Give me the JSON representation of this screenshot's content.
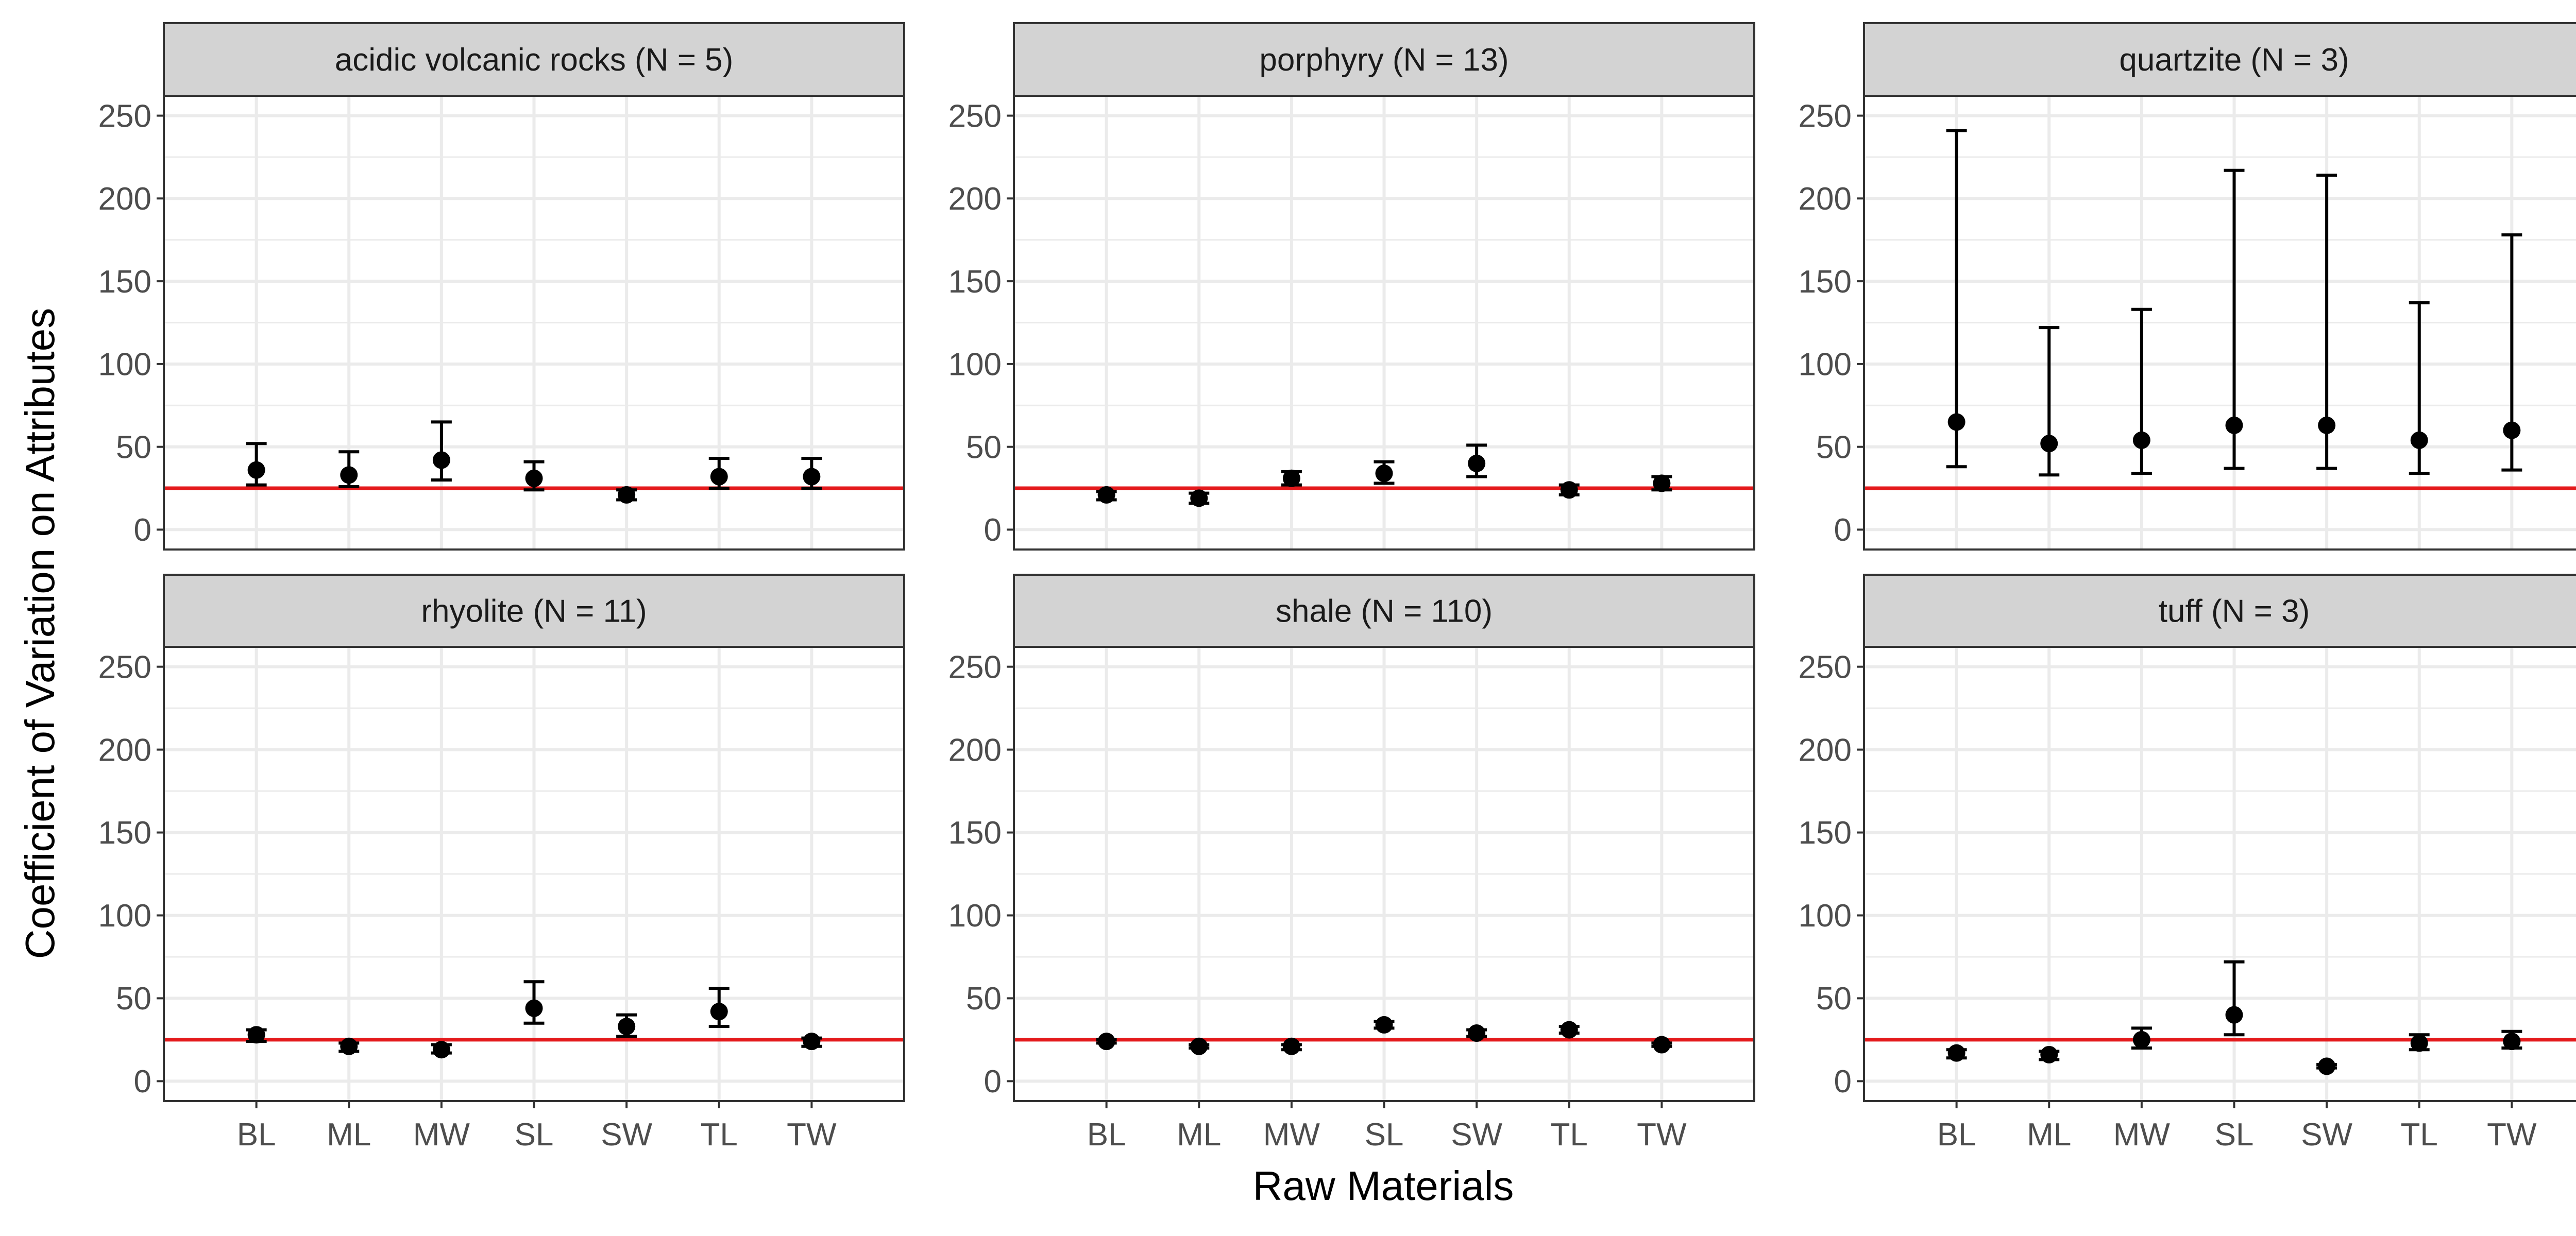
{
  "chart_data": {
    "type": "scatter",
    "subtype": "faceted point with error bars",
    "xlabel": "Raw Materials",
    "ylabel": "Coefficient of Variation on Attributes",
    "categories": [
      "BL",
      "ML",
      "MW",
      "SL",
      "SW",
      "TL",
      "TW"
    ],
    "ylim": [
      -12,
      262
    ],
    "yticks": [
      0,
      50,
      100,
      150,
      200,
      250
    ],
    "grid": true,
    "reference_line": {
      "y": 25,
      "color": "#e41a1c"
    },
    "colors": {
      "points": "#000000",
      "reference": "#e41a1c",
      "strip": "#d3d3d3",
      "grid": "#ebebeb"
    },
    "facets": [
      {
        "title": "acidic volcanic rocks (N = 5)",
        "points": [
          {
            "x": "BL",
            "y": 36,
            "ymin": 27,
            "ymax": 52
          },
          {
            "x": "ML",
            "y": 33,
            "ymin": 26,
            "ymax": 47
          },
          {
            "x": "MW",
            "y": 42,
            "ymin": 30,
            "ymax": 65
          },
          {
            "x": "SL",
            "y": 31,
            "ymin": 24,
            "ymax": 41
          },
          {
            "x": "SW",
            "y": 21,
            "ymin": 18,
            "ymax": 24
          },
          {
            "x": "TL",
            "y": 32,
            "ymin": 25,
            "ymax": 43
          },
          {
            "x": "TW",
            "y": 32,
            "ymin": 25,
            "ymax": 43
          }
        ]
      },
      {
        "title": "porphyry (N = 13)",
        "points": [
          {
            "x": "BL",
            "y": 21,
            "ymin": 18,
            "ymax": 23
          },
          {
            "x": "ML",
            "y": 19,
            "ymin": 16,
            "ymax": 22
          },
          {
            "x": "MW",
            "y": 31,
            "ymin": 27,
            "ymax": 35
          },
          {
            "x": "SL",
            "y": 34,
            "ymin": 28,
            "ymax": 41
          },
          {
            "x": "SW",
            "y": 40,
            "ymin": 32,
            "ymax": 51
          },
          {
            "x": "TL",
            "y": 24,
            "ymin": 21,
            "ymax": 27
          },
          {
            "x": "TW",
            "y": 28,
            "ymin": 24,
            "ymax": 32
          }
        ]
      },
      {
        "title": "quartzite (N = 3)",
        "points": [
          {
            "x": "BL",
            "y": 65,
            "ymin": 38,
            "ymax": 241
          },
          {
            "x": "ML",
            "y": 52,
            "ymin": 33,
            "ymax": 122
          },
          {
            "x": "MW",
            "y": 54,
            "ymin": 34,
            "ymax": 133
          },
          {
            "x": "SL",
            "y": 63,
            "ymin": 37,
            "ymax": 217
          },
          {
            "x": "SW",
            "y": 63,
            "ymin": 37,
            "ymax": 214
          },
          {
            "x": "TL",
            "y": 54,
            "ymin": 34,
            "ymax": 137
          },
          {
            "x": "TW",
            "y": 60,
            "ymin": 36,
            "ymax": 178
          }
        ]
      },
      {
        "title": "rhyolite (N = 11)",
        "points": [
          {
            "x": "BL",
            "y": 28,
            "ymin": 24,
            "ymax": 31
          },
          {
            "x": "ML",
            "y": 21,
            "ymin": 18,
            "ymax": 23
          },
          {
            "x": "MW",
            "y": 19,
            "ymin": 17,
            "ymax": 22
          },
          {
            "x": "SL",
            "y": 44,
            "ymin": 35,
            "ymax": 60
          },
          {
            "x": "SW",
            "y": 33,
            "ymin": 27,
            "ymax": 40
          },
          {
            "x": "TL",
            "y": 42,
            "ymin": 33,
            "ymax": 56
          },
          {
            "x": "TW",
            "y": 24,
            "ymin": 21,
            "ymax": 26
          }
        ]
      },
      {
        "title": "shale (N = 110)",
        "points": [
          {
            "x": "BL",
            "y": 24,
            "ymin": 23,
            "ymax": 25
          },
          {
            "x": "ML",
            "y": 21,
            "ymin": 20,
            "ymax": 22
          },
          {
            "x": "MW",
            "y": 21,
            "ymin": 19,
            "ymax": 22
          },
          {
            "x": "SL",
            "y": 34,
            "ymin": 32,
            "ymax": 36
          },
          {
            "x": "SW",
            "y": 29,
            "ymin": 27,
            "ymax": 31
          },
          {
            "x": "TL",
            "y": 31,
            "ymin": 29,
            "ymax": 33
          },
          {
            "x": "TW",
            "y": 22,
            "ymin": 21,
            "ymax": 23
          }
        ]
      },
      {
        "title": "tuff (N = 3)",
        "points": [
          {
            "x": "BL",
            "y": 17,
            "ymin": 14,
            "ymax": 19
          },
          {
            "x": "ML",
            "y": 16,
            "ymin": 13,
            "ymax": 18
          },
          {
            "x": "MW",
            "y": 25,
            "ymin": 20,
            "ymax": 32
          },
          {
            "x": "SL",
            "y": 40,
            "ymin": 28,
            "ymax": 72
          },
          {
            "x": "SW",
            "y": 9,
            "ymin": 8,
            "ymax": 10
          },
          {
            "x": "TL",
            "y": 23,
            "ymin": 19,
            "ymax": 28
          },
          {
            "x": "TW",
            "y": 24,
            "ymin": 20,
            "ymax": 30
          }
        ]
      }
    ]
  }
}
